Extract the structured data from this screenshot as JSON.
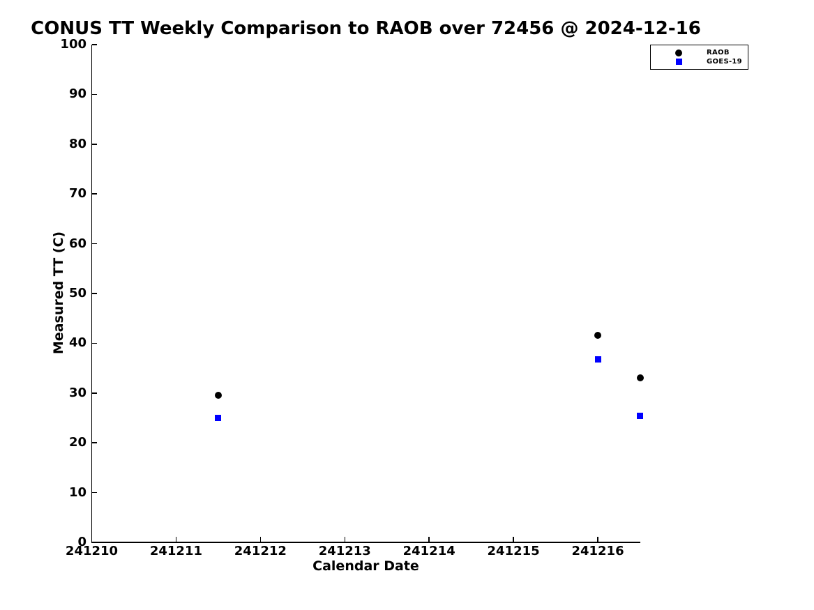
{
  "page": {
    "background_color": "#ffffff",
    "text_color": "#000000"
  },
  "chart_data": {
    "type": "scatter",
    "title": "CONUS TT Weekly Comparison to RAOB over 72456 @ 2024-12-16",
    "xlabel": "Calendar Date",
    "ylabel": "Measured TT (C)",
    "xlim": [
      241210,
      241216.5
    ],
    "ylim": [
      0,
      100
    ],
    "x_ticks": [
      241210,
      241211,
      241212,
      241213,
      241214,
      241215,
      241216
    ],
    "y_ticks": [
      0,
      10,
      20,
      30,
      40,
      50,
      60,
      70,
      80,
      90,
      100
    ],
    "grid": false,
    "legend": {
      "position": "top-right",
      "border_color": "#000000",
      "items": [
        "RAOB",
        "GOES-19"
      ]
    },
    "series": [
      {
        "name": "RAOB",
        "marker": "circle",
        "color": "#000000",
        "points": [
          {
            "x": 241211.5,
            "y": 29.5
          },
          {
            "x": 241216.0,
            "y": 41.6
          },
          {
            "x": 241216.5,
            "y": 33.0
          }
        ]
      },
      {
        "name": "GOES-19",
        "marker": "square",
        "color": "#0000ff",
        "points": [
          {
            "x": 241211.5,
            "y": 25.0
          },
          {
            "x": 241216.0,
            "y": 36.7
          },
          {
            "x": 241216.5,
            "y": 25.4
          }
        ]
      }
    ]
  }
}
